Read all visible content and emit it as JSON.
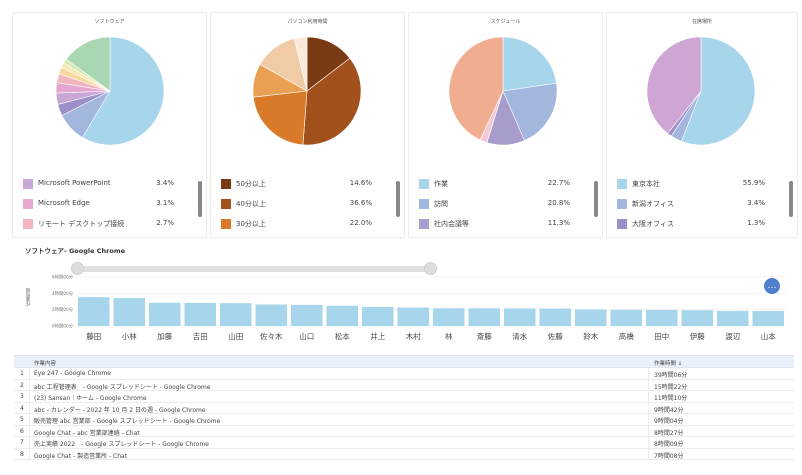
{
  "colors": {
    "light_blue": "#a7d5ec",
    "accent_blue": "#4d7fcc"
  },
  "panels": [
    {
      "title": "ソフトウェア",
      "slices": [
        {
          "value": 58.5,
          "color": "#a7d5ec"
        },
        {
          "value": 9.0,
          "color": "#a3b6de"
        },
        {
          "value": 3.5,
          "color": "#9d90c9"
        },
        {
          "value": 3.4,
          "color": "#c9a8d8"
        },
        {
          "value": 3.1,
          "color": "#e7a8cf"
        },
        {
          "value": 2.7,
          "color": "#f2b6c1"
        },
        {
          "value": 2.0,
          "color": "#f6d99a"
        },
        {
          "value": 1.5,
          "color": "#f5e9b3"
        },
        {
          "value": 1.3,
          "color": "#d8e9b2"
        },
        {
          "value": 15.0,
          "color": "#a9d7b2"
        }
      ],
      "legend": [
        {
          "label": "Microsoft PowerPoint",
          "value": "3.4%",
          "color": "#c9a8d8"
        },
        {
          "label": "Microsoft Edge",
          "value": "3.1%",
          "color": "#e7a8cf"
        },
        {
          "label": "リモート デスクトップ接続",
          "value": "2.7%",
          "color": "#f2b6c1"
        }
      ]
    },
    {
      "title": "パソコン利用時間",
      "slices": [
        {
          "value": 14.6,
          "color": "#7a3b14"
        },
        {
          "value": 36.6,
          "color": "#a2501c"
        },
        {
          "value": 22.0,
          "color": "#d97a28"
        },
        {
          "value": 10.0,
          "color": "#e9a053"
        },
        {
          "value": 13.0,
          "color": "#f1cba6"
        },
        {
          "value": 3.8,
          "color": "#fbe9d9"
        }
      ],
      "legend": [
        {
          "label": "50分以上",
          "value": "14.6%",
          "color": "#7a3b14"
        },
        {
          "label": "40分以上",
          "value": "36.6%",
          "color": "#a2501c"
        },
        {
          "label": "30分以上",
          "value": "22.0%",
          "color": "#d97a28"
        }
      ]
    },
    {
      "title": "スケジュール",
      "slices": [
        {
          "value": 22.7,
          "color": "#a7d5ec"
        },
        {
          "value": 20.8,
          "color": "#a3b6de"
        },
        {
          "value": 11.3,
          "color": "#a89ccc"
        },
        {
          "value": 2.2,
          "color": "#f3cbd7"
        },
        {
          "value": 43.0,
          "color": "#f0ad90"
        }
      ],
      "legend": [
        {
          "label": "作業",
          "value": "22.7%",
          "color": "#a7d5ec"
        },
        {
          "label": "訪問",
          "value": "20.8%",
          "color": "#a3b6de"
        },
        {
          "label": "社内会議等",
          "value": "11.3%",
          "color": "#a89ccc"
        }
      ]
    },
    {
      "title": "在席場所",
      "slices": [
        {
          "value": 55.9,
          "color": "#a7d5ec"
        },
        {
          "value": 3.4,
          "color": "#a3b6de"
        },
        {
          "value": 1.3,
          "color": "#9d90c9"
        },
        {
          "value": 39.4,
          "color": "#cfa5d4"
        }
      ],
      "legend": [
        {
          "label": "東京本社",
          "value": "55.9%",
          "color": "#a7d5ec"
        },
        {
          "label": "新潟オフィス",
          "value": "3.4%",
          "color": "#a3b6de"
        },
        {
          "label": "大阪オフィス",
          "value": "1.3%",
          "color": "#9d90c9"
        }
      ]
    }
  ],
  "section_title": "ソフトウェア- Google Chrome",
  "chart_data": {
    "type": "bar",
    "ylabel": "作業時間",
    "yticks": [
      "6時間00分",
      "4時間00分",
      "2時間00分",
      "0時間00分"
    ],
    "ylim": [
      0,
      360
    ],
    "categories": [
      "藤田",
      "小林",
      "加藤",
      "吉田",
      "山田",
      "佐々木",
      "山口",
      "松本",
      "井上",
      "木村",
      "林",
      "斎藤",
      "清水",
      "佐藤",
      "鈴木",
      "高橋",
      "田中",
      "伊藤",
      "渡辺",
      "山本"
    ],
    "values": [
      212,
      205,
      171,
      170,
      168,
      158,
      155,
      149,
      140,
      136,
      130,
      130,
      129,
      128,
      122,
      119,
      118,
      116,
      111,
      110
    ],
    "color": "#a7d5ec"
  },
  "fab_label": "…",
  "table": {
    "headers": [
      "作業内容",
      "作業時間 ↓"
    ],
    "rows": [
      {
        "num": "1",
        "task": "Eye 247 - Google Chrome",
        "time": "39時間06分"
      },
      {
        "num": "2",
        "task": "abc 工程管理表　- Google スプレッドシート - Google Chrome",
        "time": "15時間22分"
      },
      {
        "num": "3",
        "task": "(23) Sansan｜ホーム - Google Chrome",
        "time": "11時間10分"
      },
      {
        "num": "4",
        "task": "abc - カレンダー - 2022 年 10 月 2 日の週 - Google Chrome",
        "time": "9時間42分"
      },
      {
        "num": "5",
        "task": "販売管理 abc 営業部 - Google スプレッドシート - Google Chrome",
        "time": "9時間04分"
      },
      {
        "num": "6",
        "task": "Google Chat - abc 営業部連絡 - Chat",
        "time": "8時間27分"
      },
      {
        "num": "7",
        "task": "売上実績 2022　- Google スプレッドシート - Google Chrome",
        "time": "8時間09分"
      },
      {
        "num": "8",
        "task": "Google Chat - 製造営業所 - Chat",
        "time": "7時間08分"
      }
    ]
  }
}
